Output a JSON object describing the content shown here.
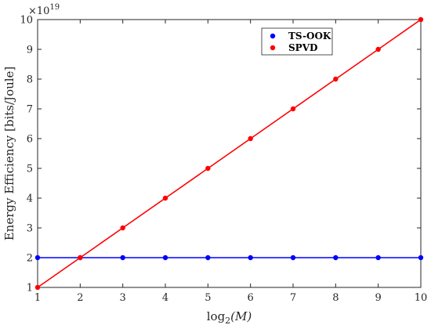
{
  "chart_data": {
    "type": "line",
    "xlabel": "log",
    "xlabel_sub": "2",
    "xlabel_arg": "(M)",
    "ylabel": "Energy Efficiency [bits/Joule]",
    "y_exponent_prefix": "×10",
    "y_exponent_power": "19",
    "xlim": [
      1,
      10
    ],
    "ylim": [
      1,
      10
    ],
    "x_ticks": [
      "1",
      "2",
      "3",
      "4",
      "5",
      "6",
      "7",
      "8",
      "9",
      "10"
    ],
    "y_ticks": [
      "1",
      "2",
      "3",
      "4",
      "5",
      "6",
      "7",
      "8",
      "9",
      "10"
    ],
    "grid": false,
    "legend_position": "top-right",
    "x": [
      1,
      2,
      3,
      4,
      5,
      6,
      7,
      8,
      9,
      10
    ],
    "series": [
      {
        "name": "TS-OOK",
        "color": "#0000ff",
        "values": [
          2,
          2,
          2,
          2,
          2,
          2,
          2,
          2,
          2,
          2
        ]
      },
      {
        "name": "SPVD",
        "color": "#ff0000",
        "values": [
          1,
          2,
          3,
          4,
          5,
          6,
          7,
          8,
          9,
          10
        ]
      }
    ]
  }
}
